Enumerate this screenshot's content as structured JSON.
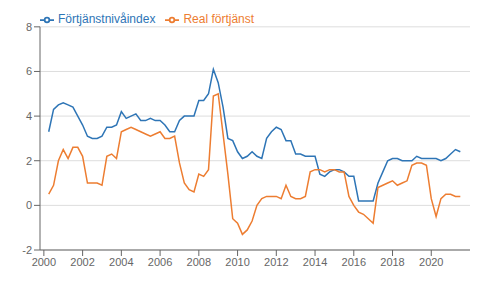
{
  "chart_data": {
    "type": "line",
    "title": "",
    "x": [
      2000.25,
      2000.5,
      2000.75,
      2001.0,
      2001.25,
      2001.5,
      2001.75,
      2002.0,
      2002.25,
      2002.5,
      2002.75,
      2003.0,
      2003.25,
      2003.5,
      2003.75,
      2004.0,
      2004.25,
      2004.5,
      2004.75,
      2005.0,
      2005.25,
      2005.5,
      2005.75,
      2006.0,
      2006.25,
      2006.5,
      2006.75,
      2007.0,
      2007.25,
      2007.5,
      2007.75,
      2008.0,
      2008.25,
      2008.5,
      2008.75,
      2009.0,
      2009.25,
      2009.5,
      2009.75,
      2010.0,
      2010.25,
      2010.5,
      2010.75,
      2011.0,
      2011.25,
      2011.5,
      2011.75,
      2012.0,
      2012.25,
      2012.5,
      2012.75,
      2013.0,
      2013.25,
      2013.5,
      2013.75,
      2014.0,
      2014.25,
      2014.5,
      2014.75,
      2015.0,
      2015.25,
      2015.5,
      2015.75,
      2016.0,
      2016.25,
      2016.5,
      2016.75,
      2017.0,
      2017.25,
      2017.5,
      2017.75,
      2018.0,
      2018.25,
      2018.5,
      2018.75,
      2019.0,
      2019.25,
      2019.5,
      2019.75,
      2020.0,
      2020.25,
      2020.5,
      2020.75,
      2021.0,
      2021.25,
      2021.5
    ],
    "series": [
      {
        "name": "Förtjänstnivåindex",
        "color": "#2e75b6",
        "values": [
          3.3,
          4.3,
          4.5,
          4.6,
          4.5,
          4.4,
          4.0,
          3.6,
          3.1,
          3.0,
          3.0,
          3.1,
          3.5,
          3.5,
          3.6,
          4.2,
          3.9,
          4.0,
          4.1,
          3.8,
          3.8,
          3.9,
          3.8,
          3.8,
          3.6,
          3.3,
          3.3,
          3.8,
          4.0,
          4.0,
          4.0,
          4.7,
          4.7,
          5.0,
          6.1,
          5.5,
          4.4,
          3.0,
          2.9,
          2.4,
          2.1,
          2.2,
          2.4,
          2.2,
          2.1,
          3.0,
          3.3,
          3.5,
          3.4,
          2.9,
          2.9,
          2.3,
          2.3,
          2.2,
          2.2,
          2.2,
          1.4,
          1.3,
          1.5,
          1.6,
          1.6,
          1.5,
          1.3,
          1.3,
          0.2,
          0.2,
          0.2,
          0.2,
          1.0,
          1.5,
          2.0,
          2.1,
          2.1,
          2.0,
          2.0,
          2.0,
          2.2,
          2.1,
          2.1,
          2.1,
          2.1,
          2.0,
          2.1,
          2.3,
          2.5,
          2.4
        ]
      },
      {
        "name": "Real förtjänst",
        "color": "#ed7d31",
        "values": [
          0.5,
          0.9,
          2.0,
          2.5,
          2.1,
          2.6,
          2.6,
          2.2,
          1.0,
          1.0,
          1.0,
          0.9,
          2.2,
          2.3,
          2.1,
          3.3,
          3.4,
          3.5,
          3.4,
          3.3,
          3.2,
          3.1,
          3.2,
          3.3,
          3.0,
          3.0,
          3.1,
          1.9,
          1.0,
          0.7,
          0.6,
          1.4,
          1.3,
          1.6,
          4.9,
          5.0,
          3.2,
          1.4,
          -0.6,
          -0.8,
          -1.3,
          -1.1,
          -0.7,
          0.0,
          0.3,
          0.4,
          0.4,
          0.4,
          0.3,
          0.9,
          0.4,
          0.3,
          0.3,
          0.4,
          1.5,
          1.6,
          1.6,
          1.5,
          1.6,
          1.6,
          1.5,
          1.5,
          0.4,
          0.0,
          -0.3,
          -0.4,
          -0.6,
          -0.8,
          0.8,
          0.9,
          1.0,
          1.1,
          0.9,
          1.0,
          1.1,
          1.8,
          1.9,
          1.9,
          1.8,
          0.3,
          -0.5,
          0.3,
          0.5,
          0.5,
          0.4,
          0.4
        ]
      }
    ],
    "xlim": [
      1999.8,
      2022.0
    ],
    "xticks": [
      2000,
      2002,
      2004,
      2006,
      2008,
      2010,
      2012,
      2014,
      2016,
      2018,
      2020
    ],
    "ylim": [
      -2,
      8
    ],
    "yticks": [
      -2,
      0,
      2,
      4,
      6,
      8
    ],
    "grid": true,
    "legend": "upper left"
  }
}
